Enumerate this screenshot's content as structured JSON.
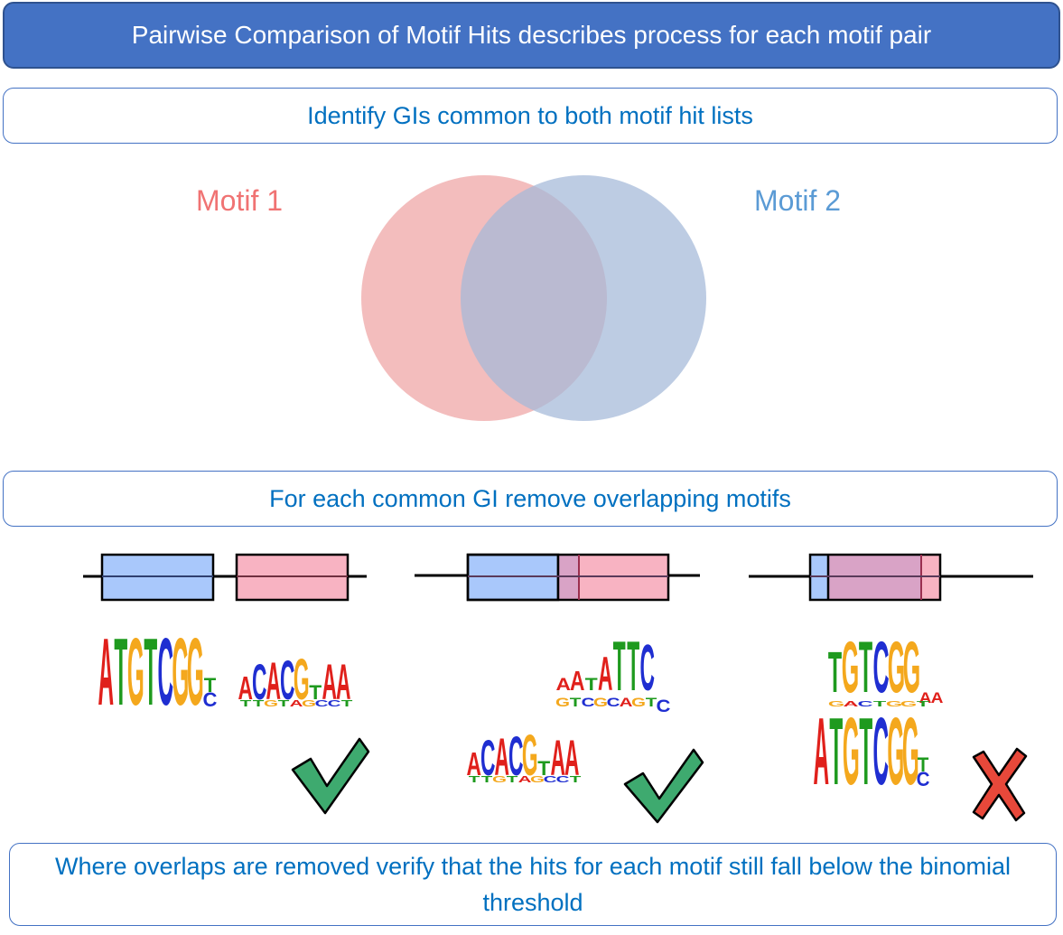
{
  "header": {
    "title": "Pairwise Comparison of Motif Hits describes process for each motif pair"
  },
  "step1": {
    "text": "Identify GIs common to both motif hit lists"
  },
  "venn": {
    "label_left": "Motif 1",
    "label_right": "Motif 2"
  },
  "step2": {
    "text": "For each common GI remove overlapping motifs"
  },
  "footer": {
    "text": "Where overlaps are removed verify that the hits for each motif still fall below the binomial threshold"
  },
  "motifs": {
    "logo_a": "ATGTCGG",
    "logo_a_sub": [
      "T",
      "C"
    ],
    "logo_b": "ACACGTAA",
    "logo_c": "AATATTC",
    "logo_c_sub": "C",
    "logo_d": "TGTCGG",
    "logo_d_sub": "AA"
  },
  "outcomes": [
    "check",
    "check",
    "cross"
  ],
  "colors": {
    "banner": "#4472c4",
    "box_text": "#0070c0",
    "motif1": "#f07373",
    "motif2": "#5b9bd5",
    "blue_box": "#a9c8fb",
    "pink_box": "#f8b3c2",
    "overlap_box": "#d9a3c6",
    "check": "#3eaa6f",
    "cross": "#e8483a",
    "A": "#e0201b",
    "C": "#1f2ed1",
    "G": "#f4a81d",
    "T": "#1e9a1e"
  }
}
